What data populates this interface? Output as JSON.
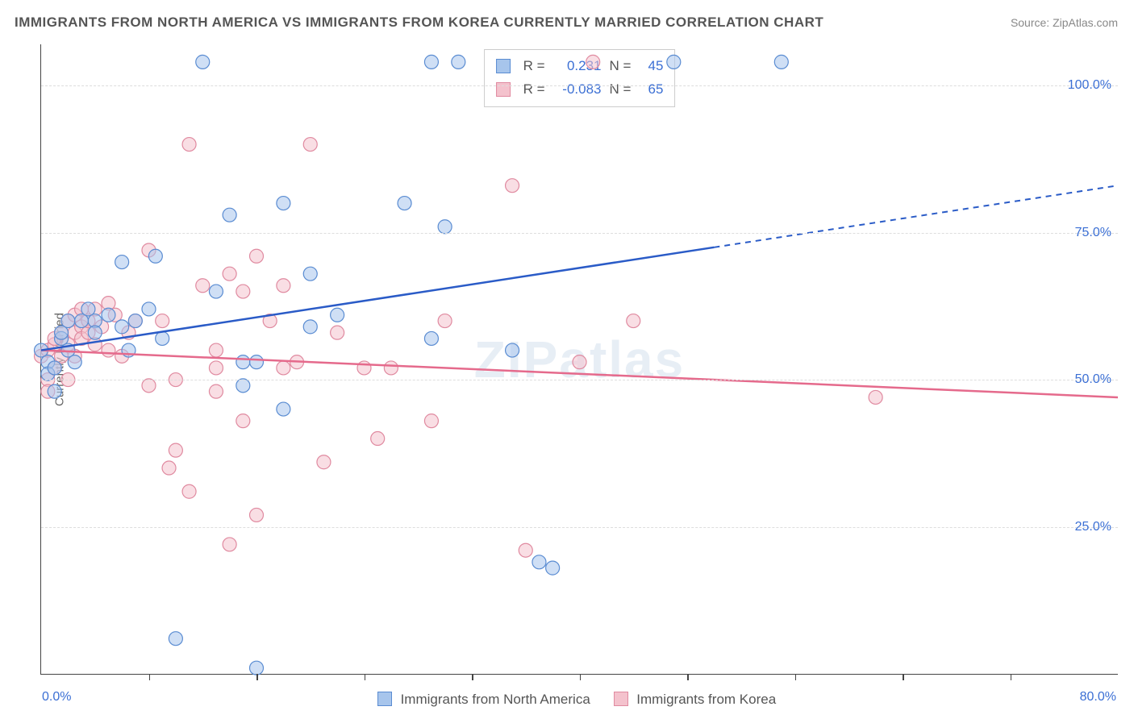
{
  "title": "IMMIGRANTS FROM NORTH AMERICA VS IMMIGRANTS FROM KOREA CURRENTLY MARRIED CORRELATION CHART",
  "source": "Source: ZipAtlas.com",
  "watermark": "ZIPatlas",
  "ylabel": "Currently Married",
  "chart": {
    "type": "scatter",
    "xlim": [
      0,
      80
    ],
    "ylim": [
      0,
      107
    ],
    "x_tick_step": 8,
    "y_grid_values": [
      25,
      50,
      75,
      100
    ],
    "y_tick_labels": [
      "25.0%",
      "50.0%",
      "75.0%",
      "100.0%"
    ],
    "x_min_label": "0.0%",
    "x_max_label": "80.0%",
    "background_color": "#ffffff",
    "grid_color": "#dddddd",
    "axis_color": "#444444",
    "tick_label_color": "#3b6fd4",
    "marker_radius": 8.5,
    "marker_opacity": 0.55,
    "line_width": 2.5,
    "series": [
      {
        "id": "north_america",
        "label": "Immigrants from North America",
        "color_fill": "#a7c5ec",
        "color_stroke": "#5a8cd2",
        "line_color": "#2a5bc7",
        "R": "0.231",
        "N": "45",
        "regression": {
          "x1": 0,
          "y1": 55,
          "x2": 50,
          "y2": 72.5,
          "dash_x2": 80,
          "dash_y2": 83
        },
        "points": [
          [
            0,
            55
          ],
          [
            0.5,
            53
          ],
          [
            0.5,
            51
          ],
          [
            1,
            52
          ],
          [
            1,
            48
          ],
          [
            1.5,
            57
          ],
          [
            1.5,
            58
          ],
          [
            2,
            60
          ],
          [
            2,
            55
          ],
          [
            2.5,
            53
          ],
          [
            3,
            60
          ],
          [
            3.5,
            62
          ],
          [
            4,
            60
          ],
          [
            4,
            58
          ],
          [
            5,
            61
          ],
          [
            6,
            59
          ],
          [
            6,
            70
          ],
          [
            6.5,
            55
          ],
          [
            7,
            60
          ],
          [
            8,
            62
          ],
          [
            8.5,
            71
          ],
          [
            9,
            57
          ],
          [
            10,
            6
          ],
          [
            12,
            104
          ],
          [
            13,
            65
          ],
          [
            14,
            78
          ],
          [
            15,
            53
          ],
          [
            15,
            49
          ],
          [
            16,
            1
          ],
          [
            16,
            53
          ],
          [
            18,
            80
          ],
          [
            18,
            45
          ],
          [
            20,
            59
          ],
          [
            20,
            68
          ],
          [
            22,
            61
          ],
          [
            27,
            80
          ],
          [
            29,
            57
          ],
          [
            29,
            104
          ],
          [
            30,
            76
          ],
          [
            31,
            104
          ],
          [
            35,
            55
          ],
          [
            37,
            19
          ],
          [
            38,
            18
          ],
          [
            47,
            104
          ],
          [
            55,
            104
          ]
        ]
      },
      {
        "id": "korea",
        "label": "Immigrants from Korea",
        "color_fill": "#f4c2cd",
        "color_stroke": "#e08aa0",
        "line_color": "#e56a8c",
        "R": "-0.083",
        "N": "65",
        "regression": {
          "x1": 0,
          "y1": 55,
          "x2": 80,
          "y2": 47
        },
        "points": [
          [
            0,
            54
          ],
          [
            0.5,
            55
          ],
          [
            0.5,
            50
          ],
          [
            0.5,
            48
          ],
          [
            1,
            56
          ],
          [
            1,
            57
          ],
          [
            1,
            52
          ],
          [
            1.5,
            58
          ],
          [
            1.5,
            54
          ],
          [
            2,
            60
          ],
          [
            2,
            56
          ],
          [
            2,
            50
          ],
          [
            2.5,
            61
          ],
          [
            2.5,
            58
          ],
          [
            2.5,
            54
          ],
          [
            3,
            59
          ],
          [
            3,
            57
          ],
          [
            3,
            62
          ],
          [
            3.5,
            58
          ],
          [
            3.5,
            60
          ],
          [
            4,
            62
          ],
          [
            4,
            56
          ],
          [
            4.5,
            59
          ],
          [
            5,
            55
          ],
          [
            5,
            63
          ],
          [
            5.5,
            61
          ],
          [
            6,
            54
          ],
          [
            6.5,
            58
          ],
          [
            7,
            60
          ],
          [
            8,
            49
          ],
          [
            8,
            72
          ],
          [
            9,
            60
          ],
          [
            9.5,
            35
          ],
          [
            10,
            50
          ],
          [
            10,
            38
          ],
          [
            11,
            31
          ],
          [
            11,
            90
          ],
          [
            12,
            66
          ],
          [
            13,
            55
          ],
          [
            13,
            48
          ],
          [
            13,
            52
          ],
          [
            14,
            22
          ],
          [
            14,
            68
          ],
          [
            15,
            65
          ],
          [
            15,
            43
          ],
          [
            16,
            27
          ],
          [
            16,
            71
          ],
          [
            17,
            60
          ],
          [
            18,
            52
          ],
          [
            18,
            66
          ],
          [
            19,
            53
          ],
          [
            20,
            90
          ],
          [
            21,
            36
          ],
          [
            22,
            58
          ],
          [
            24,
            52
          ],
          [
            25,
            40
          ],
          [
            26,
            52
          ],
          [
            29,
            43
          ],
          [
            30,
            60
          ],
          [
            35,
            83
          ],
          [
            36,
            21
          ],
          [
            40,
            53
          ],
          [
            41,
            104
          ],
          [
            44,
            60
          ],
          [
            62,
            47
          ]
        ]
      }
    ]
  },
  "stats_legend": {
    "r_label": "R =",
    "n_label": "N ="
  },
  "bottom_legend_labels": [
    "Immigrants from North America",
    "Immigrants from Korea"
  ]
}
